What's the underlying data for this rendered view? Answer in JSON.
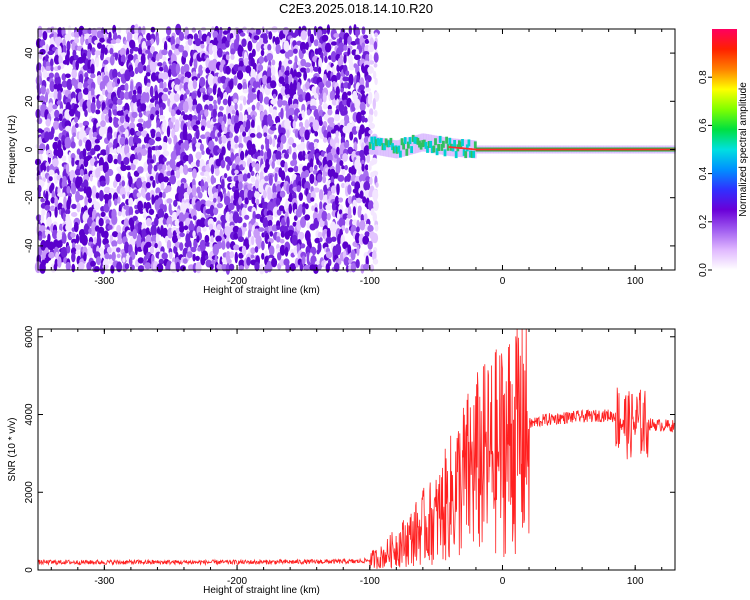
{
  "title": "C2E3.2025.018.14.10.R20",
  "chart_data": [
    {
      "type": "heatmap",
      "xlabel": "Height of straight line (km)",
      "ylabel": "Frequency (Hz)",
      "xlim": [
        -350,
        130
      ],
      "ylim": [
        -50,
        50
      ],
      "x_ticks": [
        -300,
        -200,
        -100,
        0,
        100
      ],
      "y_ticks": [
        -40,
        -20,
        0,
        20,
        40
      ],
      "colorbar": {
        "label": "Normalized spectral amplitude",
        "range": [
          0,
          1
        ],
        "ticks": [
          "0.0",
          "0.2",
          "0.4",
          "0.6",
          "0.8"
        ],
        "colors": [
          "#ffffff",
          "#e0b8ff",
          "#a05cf0",
          "#6a00d8",
          "#3030ff",
          "#0090ff",
          "#00e0e0",
          "#00e040",
          "#80ff00",
          "#ffff00",
          "#ff8000",
          "#ff2000",
          "#ff0060"
        ]
      },
      "noise_region_x": [
        -350,
        -100
      ],
      "signal_track": [
        {
          "x": -100,
          "y": 2
        },
        {
          "x": -80,
          "y": 0
        },
        {
          "x": -60,
          "y": 3
        },
        {
          "x": -40,
          "y": 1
        },
        {
          "x": -20,
          "y": 0
        },
        {
          "x": 0,
          "y": 0
        },
        {
          "x": 50,
          "y": 0
        },
        {
          "x": 100,
          "y": 0
        },
        {
          "x": 130,
          "y": 0
        }
      ]
    },
    {
      "type": "line",
      "xlabel": "Height of straight line (km)",
      "ylabel": "SNR (10 * v/v)",
      "xlim": [
        -350,
        130
      ],
      "ylim": [
        0,
        6200
      ],
      "x_ticks": [
        -300,
        -200,
        -100,
        0,
        100
      ],
      "y_ticks": [
        0,
        2000,
        4000,
        6000
      ],
      "line_color": "#ff2020",
      "x": [
        -350,
        -300,
        -250,
        -200,
        -150,
        -110,
        -100,
        -90,
        -80,
        -70,
        -60,
        -50,
        -40,
        -30,
        -20,
        -10,
        0,
        10,
        20,
        30,
        40,
        60,
        80,
        90,
        95,
        100,
        110,
        130
      ],
      "y": [
        200,
        200,
        200,
        200,
        210,
        220,
        250,
        350,
        600,
        800,
        1100,
        1300,
        1800,
        2300,
        2700,
        2900,
        3150,
        3500,
        3750,
        3850,
        3900,
        3950,
        3980,
        3900,
        3700,
        3800,
        3750,
        3700
      ]
    }
  ]
}
